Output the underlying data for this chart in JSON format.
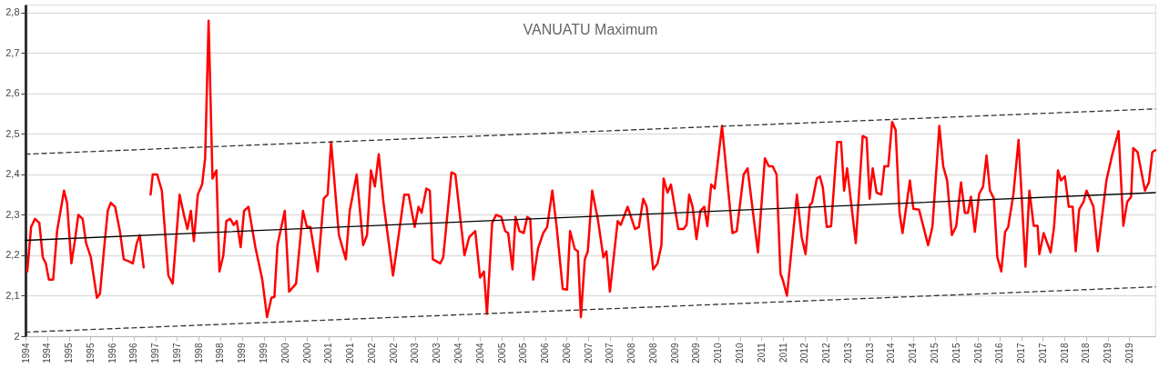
{
  "chart_data": {
    "type": "line",
    "title": "VANUATU Maximum",
    "xlim": [
      1994,
      2020.1
    ],
    "xticks": [
      {
        "value": 1994.0,
        "label": "1994"
      },
      {
        "value": 1994.5,
        "label": "1994"
      },
      {
        "value": 1995.0,
        "label": "1995"
      },
      {
        "value": 1995.5,
        "label": "1995"
      },
      {
        "value": 1996.0,
        "label": "1996"
      },
      {
        "value": 1996.5,
        "label": "1996"
      },
      {
        "value": 1997.0,
        "label": "1997"
      },
      {
        "value": 1997.5,
        "label": "1997"
      },
      {
        "value": 1998.0,
        "label": "1998"
      },
      {
        "value": 1998.5,
        "label": "1998"
      },
      {
        "value": 1999.0,
        "label": "1999"
      },
      {
        "value": 1999.5,
        "label": "1999"
      },
      {
        "value": 2000.0,
        "label": "2000"
      },
      {
        "value": 2000.5,
        "label": "2000"
      },
      {
        "value": 2001.0,
        "label": "2001"
      },
      {
        "value": 2001.5,
        "label": "2001"
      },
      {
        "value": 2002.0,
        "label": "2002"
      },
      {
        "value": 2002.5,
        "label": "2002"
      },
      {
        "value": 2003.0,
        "label": "2003"
      },
      {
        "value": 2003.5,
        "label": "2003"
      },
      {
        "value": 2004.0,
        "label": "2004"
      },
      {
        "value": 2004.5,
        "label": "2004"
      },
      {
        "value": 2005.0,
        "label": "2005"
      },
      {
        "value": 2005.5,
        "label": "2005"
      },
      {
        "value": 2006.0,
        "label": "2006"
      },
      {
        "value": 2006.5,
        "label": "2006"
      },
      {
        "value": 2007.0,
        "label": "2007"
      },
      {
        "value": 2007.5,
        "label": "2007"
      },
      {
        "value": 2008.0,
        "label": "2008"
      },
      {
        "value": 2008.5,
        "label": "2008"
      },
      {
        "value": 2009.0,
        "label": "2009"
      },
      {
        "value": 2009.5,
        "label": "2009"
      },
      {
        "value": 2010.0,
        "label": "2010"
      },
      {
        "value": 2010.5,
        "label": "2010"
      },
      {
        "value": 2011.0,
        "label": "2011"
      },
      {
        "value": 2011.5,
        "label": "2011"
      },
      {
        "value": 2012.0,
        "label": "2012"
      },
      {
        "value": 2012.5,
        "label": "2012"
      },
      {
        "value": 2013.0,
        "label": "2013"
      },
      {
        "value": 2013.5,
        "label": "2013"
      },
      {
        "value": 2014.0,
        "label": "2014"
      },
      {
        "value": 2014.5,
        "label": "2014"
      },
      {
        "value": 2015.0,
        "label": "2015"
      },
      {
        "value": 2015.5,
        "label": "2015"
      },
      {
        "value": 2016.0,
        "label": "2016"
      },
      {
        "value": 2016.5,
        "label": "2016"
      },
      {
        "value": 2017.0,
        "label": "2017"
      },
      {
        "value": 2017.5,
        "label": "2017"
      },
      {
        "value": 2018.0,
        "label": "2018"
      },
      {
        "value": 2018.5,
        "label": "2018"
      },
      {
        "value": 2019.0,
        "label": "2019"
      },
      {
        "value": 2019.5,
        "label": "2019"
      }
    ],
    "ylim": [
      2,
      2.82
    ],
    "yticks": [
      2,
      {
        "value": 2.1,
        "label": "2,1"
      },
      {
        "value": 2.2,
        "label": "2,2"
      },
      {
        "value": 2.3,
        "label": "2,3"
      },
      {
        "value": 2.4,
        "label": "2,4"
      },
      {
        "value": 2.5,
        "label": "2,5"
      },
      {
        "value": 2.6,
        "label": "2,6"
      },
      {
        "value": 2.7,
        "label": "2,7"
      },
      {
        "value": 2.8,
        "label": "2,8"
      }
    ],
    "grid": "y",
    "marker": "none",
    "series": [
      {
        "color": "#ff0000",
        "line_style": "solid",
        "x": [
          1994.04,
          1994.13,
          1994.22,
          1994.32,
          1994.4,
          1994.47,
          1994.54,
          1994.64,
          1994.73,
          1994.89,
          1994.96,
          1995.06,
          1995.14,
          1995.22,
          1995.32,
          1995.4,
          1995.51,
          1995.65,
          1995.72,
          1995.81,
          1995.9,
          1995.97,
          1996.07,
          1996.18,
          1996.27,
          1996.39,
          1996.48,
          1996.57,
          1996.64,
          1996.73,
          1996.81,
          1996.89,
          1996.94,
          1997.04,
          1997.15,
          1997.3,
          1997.4,
          1997.56,
          1997.66,
          1997.74,
          1997.82,
          1997.89,
          1997.98,
          1998.08,
          1998.15,
          1998.23,
          1998.32,
          1998.41,
          1998.48,
          1998.57,
          1998.64,
          1998.73,
          1998.81,
          1998.88,
          1998.97,
          1999.05,
          1999.15,
          1999.31,
          1999.47,
          1999.58,
          1999.68,
          1999.75,
          1999.82,
          1999.99,
          2000.09,
          2000.25,
          2000.41,
          2000.5,
          2000.58,
          2000.75,
          2000.89,
          2000.98,
          2001.06,
          2001.24,
          2001.4,
          2001.49,
          2001.65,
          2001.8,
          2001.89,
          2001.98,
          2002.07,
          2002.16,
          2002.27,
          2002.49,
          2002.75,
          2002.85,
          2002.99,
          2003.08,
          2003.15,
          2003.26,
          2003.34,
          2003.41,
          2003.58,
          2003.65,
          2003.84,
          2003.93,
          2004.14,
          2004.25,
          2004.39,
          2004.5,
          2004.59,
          2004.66,
          2004.78,
          2004.87,
          2004.99,
          2005.08,
          2005.15,
          2005.25,
          2005.32,
          2005.41,
          2005.51,
          2005.59,
          2005.66,
          2005.73,
          2005.84,
          2005.96,
          2006.05,
          2006.17,
          2006.27,
          2006.41,
          2006.51,
          2006.58,
          2006.69,
          2006.76,
          2006.83,
          2006.92,
          2006.99,
          2007.09,
          2007.22,
          2007.35,
          2007.42,
          2007.5,
          2007.68,
          2007.75,
          2007.91,
          2008.08,
          2008.17,
          2008.27,
          2008.35,
          2008.5,
          2008.6,
          2008.69,
          2008.74,
          2008.83,
          2008.91,
          2009.08,
          2009.2,
          2009.27,
          2009.33,
          2009.41,
          2009.5,
          2009.59,
          2009.68,
          2009.75,
          2009.84,
          2009.92,
          2010.09,
          2010.33,
          2010.43,
          2010.59,
          2010.68,
          2010.92,
          2011.08,
          2011.17,
          2011.26,
          2011.35,
          2011.44,
          2011.5,
          2011.59,
          2011.82,
          2011.93,
          2012.02,
          2012.12,
          2012.17,
          2012.28,
          2012.35,
          2012.42,
          2012.51,
          2012.61,
          2012.75,
          2012.84,
          2012.91,
          2012.98,
          2013.18,
          2013.34,
          2013.43,
          2013.5,
          2013.57,
          2013.66,
          2013.77,
          2013.84,
          2013.93,
          2014.02,
          2014.1,
          2014.19,
          2014.26,
          2014.43,
          2014.51,
          2014.64,
          2014.72,
          2014.85,
          2014.95,
          2015.11,
          2015.2,
          2015.29,
          2015.4,
          2015.5,
          2015.61,
          2015.7,
          2015.77,
          2015.84,
          2015.93,
          2016.03,
          2016.12,
          2016.2,
          2016.28,
          2016.37,
          2016.45,
          2016.54,
          2016.63,
          2016.7,
          2016.82,
          2016.94,
          2017.1,
          2017.19,
          2017.29,
          2017.38,
          2017.42,
          2017.52,
          2017.68,
          2017.76,
          2017.85,
          2017.92,
          2018.01,
          2018.1,
          2018.19,
          2018.26,
          2018.34,
          2018.44,
          2018.51,
          2018.67,
          2018.77,
          2018.97,
          2019.1,
          2019.25,
          2019.36,
          2019.45,
          2019.54,
          2019.59,
          2019.69,
          2019.86,
          2019.95,
          2020.03,
          2020.1
        ],
        "values": [
          2.16,
          2.27,
          2.29,
          2.28,
          2.195,
          2.18,
          2.14,
          2.14,
          2.26,
          2.36,
          2.33,
          2.18,
          2.235,
          2.3,
          2.29,
          2.23,
          2.195,
          2.095,
          2.105,
          2.21,
          2.31,
          2.33,
          2.32,
          2.26,
          2.19,
          2.185,
          2.18,
          2.23,
          2.25,
          2.17,
          null,
          2.35,
          2.4,
          2.4,
          2.36,
          2.15,
          2.13,
          2.35,
          2.3,
          2.265,
          2.31,
          2.235,
          2.35,
          2.375,
          2.44,
          2.78,
          2.39,
          2.41,
          2.16,
          2.2,
          2.285,
          2.29,
          2.275,
          2.285,
          2.22,
          2.31,
          2.32,
          2.22,
          2.14,
          2.047,
          2.095,
          2.097,
          2.225,
          2.31,
          2.11,
          2.13,
          2.31,
          2.27,
          2.27,
          2.16,
          2.34,
          2.35,
          2.48,
          2.25,
          2.19,
          2.31,
          2.4,
          2.225,
          2.25,
          2.41,
          2.37,
          2.45,
          2.33,
          2.15,
          2.35,
          2.35,
          2.27,
          2.32,
          2.305,
          2.365,
          2.36,
          2.19,
          2.18,
          2.195,
          2.405,
          2.4,
          2.2,
          2.245,
          2.26,
          2.145,
          2.16,
          2.055,
          2.28,
          2.3,
          2.295,
          2.26,
          2.255,
          2.165,
          2.295,
          2.26,
          2.255,
          2.295,
          2.29,
          2.14,
          2.217,
          2.255,
          2.27,
          2.36,
          2.27,
          2.117,
          2.115,
          2.26,
          2.215,
          2.21,
          2.047,
          2.19,
          2.21,
          2.36,
          2.29,
          2.195,
          2.21,
          2.11,
          2.285,
          2.275,
          2.32,
          2.265,
          2.27,
          2.34,
          2.32,
          2.165,
          2.18,
          2.225,
          2.39,
          2.355,
          2.375,
          2.265,
          2.265,
          2.275,
          2.35,
          2.32,
          2.24,
          2.31,
          2.32,
          2.272,
          2.375,
          2.365,
          2.52,
          2.255,
          2.26,
          2.4,
          2.415,
          2.207,
          2.44,
          2.42,
          2.42,
          2.4,
          2.155,
          2.137,
          2.1,
          2.35,
          2.245,
          2.203,
          2.325,
          2.33,
          2.39,
          2.395,
          2.367,
          2.27,
          2.272,
          2.48,
          2.48,
          2.36,
          2.415,
          2.23,
          2.495,
          2.49,
          2.34,
          2.415,
          2.355,
          2.35,
          2.42,
          2.42,
          2.53,
          2.51,
          2.305,
          2.255,
          2.385,
          2.315,
          2.313,
          2.28,
          2.225,
          2.27,
          2.52,
          2.42,
          2.385,
          2.25,
          2.272,
          2.38,
          2.305,
          2.305,
          2.345,
          2.258,
          2.352,
          2.37,
          2.447,
          2.36,
          2.34,
          2.195,
          2.16,
          2.258,
          2.27,
          2.35,
          2.485,
          2.172,
          2.36,
          2.273,
          2.273,
          2.203,
          2.255,
          2.207,
          2.27,
          2.41,
          2.385,
          2.395,
          2.32,
          2.32,
          2.21,
          2.313,
          2.332,
          2.36,
          2.32,
          2.21,
          2.385,
          2.447,
          2.507,
          2.273,
          2.332,
          2.345,
          2.465,
          2.455,
          2.36,
          2.38,
          2.455,
          2.46
        ]
      },
      {
        "color": "#000000",
        "line_style": "solid",
        "x": [
          1994,
          2020.1
        ],
        "values": [
          2.237,
          2.355
        ]
      },
      {
        "color": "#333333",
        "line_style": "dashed",
        "x": [
          1994,
          2020.1
        ],
        "values": [
          2.45,
          2.562
        ]
      },
      {
        "color": "#333333",
        "line_style": "dashed",
        "x": [
          1994,
          2020.1
        ],
        "values": [
          2.01,
          2.122
        ]
      }
    ]
  }
}
